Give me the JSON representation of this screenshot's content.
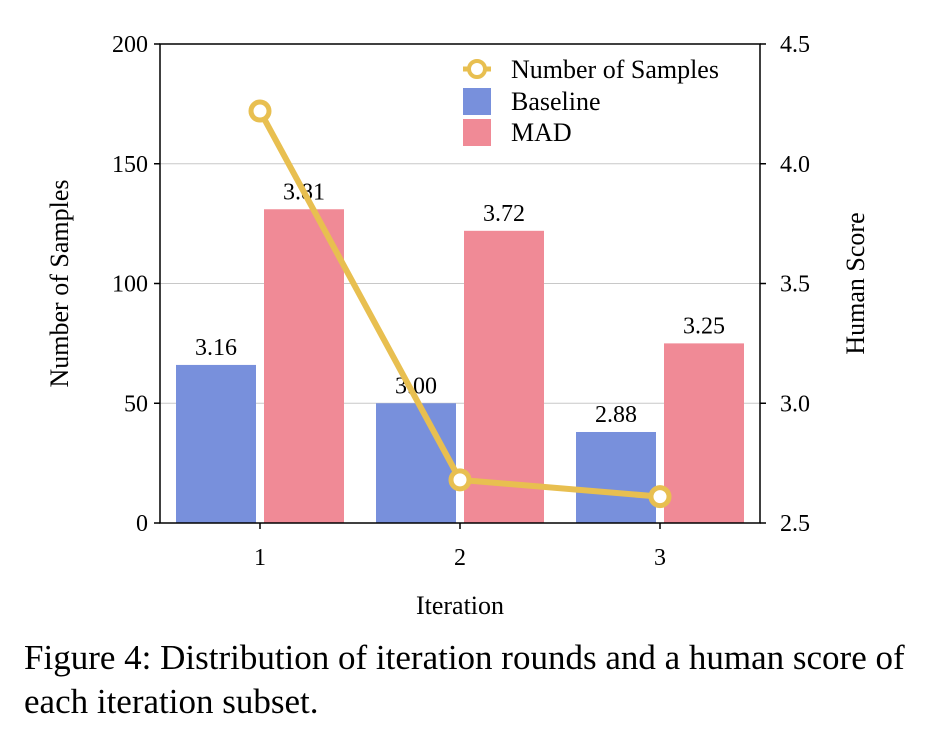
{
  "chart_data": {
    "type": "bar",
    "categories": [
      "1",
      "2",
      "3"
    ],
    "xlabel": "Iteration",
    "ylabel_left": "Number of Samples",
    "ylabel_right": "Human Score",
    "ylim_left": [
      0,
      200
    ],
    "ylim_right": [
      2.5,
      4.5
    ],
    "yticks_left": [
      "0",
      "50",
      "100",
      "150",
      "200"
    ],
    "yticks_right": [
      "2.5",
      "3.0",
      "3.5",
      "4.0",
      "4.5"
    ],
    "grid": "horizontal",
    "legend_position": "top-right",
    "series": [
      {
        "name": "Baseline",
        "kind": "bar",
        "axis": "right",
        "color": "#7890dc",
        "values": [
          3.16,
          3.0,
          2.88
        ],
        "labels": [
          "3.16",
          "3.00",
          "2.88"
        ]
      },
      {
        "name": "MAD",
        "kind": "bar",
        "axis": "right",
        "color": "#f08a96",
        "values": [
          3.81,
          3.72,
          3.25
        ],
        "labels": [
          "3.81",
          "3.72",
          "3.25"
        ]
      },
      {
        "name": "Number of Samples",
        "kind": "line",
        "axis": "left",
        "color": "#e8bf50",
        "values": [
          172,
          18,
          11
        ]
      }
    ]
  },
  "caption": "Figure 4: Distribution of iteration rounds and a human score of each iteration subset."
}
